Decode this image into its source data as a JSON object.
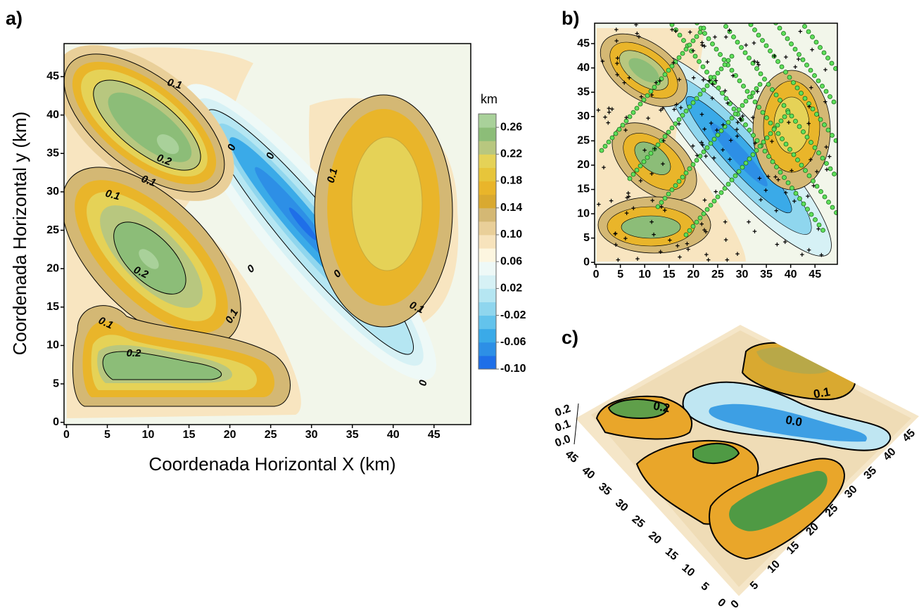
{
  "chart_data": [
    {
      "type": "contour",
      "panel_label": "a)",
      "x_label": "Coordenada Horizontal X (km)",
      "y_label": "Coordenada Horizontal y (km)",
      "xlim": [
        -0.3,
        49.5
      ],
      "ylim": [
        -0.3,
        49.3
      ],
      "xticks": [
        0,
        5,
        10,
        15,
        20,
        25,
        30,
        35,
        40,
        45
      ],
      "yticks": [
        0,
        5,
        10,
        15,
        20,
        25,
        30,
        35,
        40,
        45
      ],
      "colorbar_title": "km",
      "zlim": [
        -0.1,
        0.28
      ],
      "zticks": [
        0.26,
        0.22,
        0.18,
        0.14,
        {
          "value": 0.1,
          "label": "0.10"
        },
        0.06,
        0.02,
        -0.02,
        -0.06,
        {
          "value": -0.1,
          "label": "-0.10"
        }
      ],
      "colors": [
        "#1f6fe8",
        "#2d8fe6",
        "#3aaae8",
        "#63c3ec",
        "#8fd6ee",
        "#b5e6f2",
        "#d6f1f5",
        "#eef9f7",
        "#fdf6e0",
        "#f7e3bc",
        "#e9cf99",
        "#d4b874",
        "#d9a930",
        "#e9b52a",
        "#e7c53a",
        "#e5d257",
        "#b8c77f",
        "#8cbd78",
        "#a9d19a"
      ],
      "contour_labels": [
        0.1,
        0.2,
        0.1,
        0.1,
        0.2,
        0.1,
        0.2,
        0.1,
        0,
        0,
        0,
        0,
        0,
        0.1,
        0.1
      ]
    },
    {
      "type": "contour",
      "panel_label": "b)",
      "xlim": [
        -0.3,
        49.6
      ],
      "ylim": [
        -0.4,
        49.2
      ],
      "xticks": [
        0,
        5,
        10,
        15,
        20,
        25,
        30,
        35,
        40,
        45
      ],
      "yticks": [
        0,
        5,
        10,
        15,
        20,
        25,
        30,
        35,
        40,
        45
      ]
    },
    {
      "type": "surface",
      "panel_label": "c)",
      "xlim": [
        0,
        45
      ],
      "ylim": [
        0,
        45
      ],
      "zlim": [
        0,
        0.25
      ],
      "xticks": [
        0,
        5,
        10,
        15,
        20,
        25,
        30,
        35,
        40,
        45
      ],
      "yticks": [
        0,
        5,
        10,
        15,
        20,
        25,
        30,
        35,
        40,
        45
      ],
      "zticks": [
        {
          "value": 0,
          "label": "0.0"
        },
        0.1,
        0.2
      ],
      "contour_labels": [
        0.2,
        {
          "value": 0,
          "label": "0.0"
        },
        0.1
      ]
    }
  ]
}
